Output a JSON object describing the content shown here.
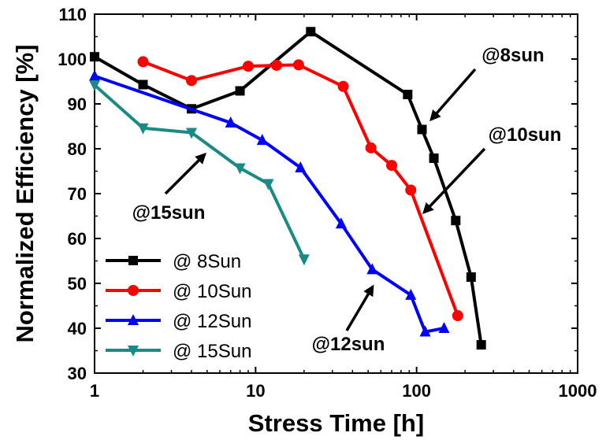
{
  "chart_data": {
    "type": "line",
    "xlabel": "Stress Time [h]",
    "ylabel": "Normalized Efficiency [%]",
    "xscale": "log",
    "xlim": [
      1,
      1000
    ],
    "ylim": [
      30,
      110
    ],
    "xticks": [
      1,
      10,
      100,
      1000
    ],
    "xtick_labels": [
      "1",
      "10",
      "100",
      "1000"
    ],
    "yticks": [
      30,
      40,
      50,
      60,
      70,
      80,
      90,
      100,
      110
    ],
    "ytick_labels": [
      "30",
      "40",
      "50",
      "60",
      "70",
      "80",
      "90",
      "100",
      "110"
    ],
    "grid": false,
    "legend_position": "bottom-left",
    "series": [
      {
        "name": "@ 8Sun",
        "color": "#000000",
        "marker": "square",
        "x": [
          1,
          2,
          4,
          8,
          22,
          88,
          108,
          128,
          175,
          218,
          252
        ],
        "y": [
          100.5,
          94.3,
          88.9,
          92.9,
          106.1,
          92.1,
          84.3,
          77.9,
          64.0,
          51.4,
          36.3
        ]
      },
      {
        "name": "@ 10Sun",
        "color": "#ff0000",
        "marker": "circle",
        "x": [
          2,
          4,
          9,
          13.5,
          18.5,
          35,
          52,
          70,
          92,
          180
        ],
        "y": [
          99.4,
          95.2,
          98.4,
          98.6,
          98.7,
          93.9,
          80.2,
          76.3,
          70.8,
          42.8
        ]
      },
      {
        "name": "@ 12Sun",
        "color": "#0000ff",
        "marker": "triangle-up",
        "x": [
          1,
          7,
          11,
          19,
          34,
          53,
          92,
          113,
          148
        ],
        "y": [
          96.2,
          85.8,
          81.9,
          75.8,
          63.3,
          53.1,
          47.4,
          39.2,
          40.0
        ]
      },
      {
        "name": "@ 15Sun",
        "color": "#1a8a85",
        "marker": "triangle-down",
        "x": [
          1,
          2,
          4,
          8,
          12,
          20
        ],
        "y": [
          94.2,
          84.6,
          83.6,
          75.7,
          72.2,
          55.4
        ]
      }
    ],
    "annotations": [
      {
        "text": "@8sun"
      },
      {
        "text": "@10sun"
      },
      {
        "text": "@15sun"
      },
      {
        "text": "@12sun"
      }
    ]
  }
}
